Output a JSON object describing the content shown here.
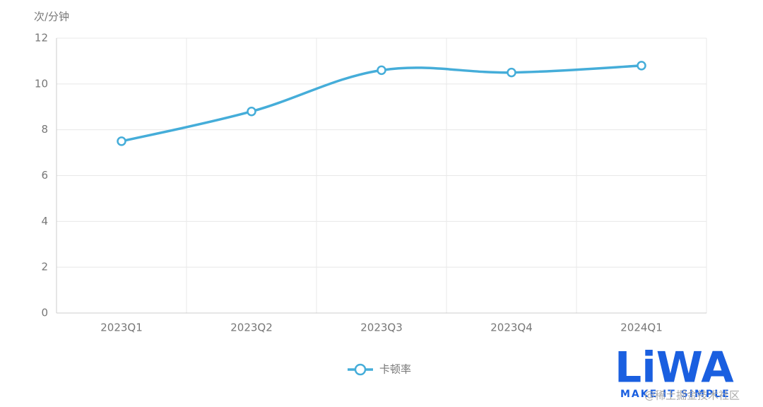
{
  "chart_data": {
    "type": "line",
    "y_unit": "次/分钟",
    "categories": [
      "2023Q1",
      "2023Q2",
      "2023Q3",
      "2023Q4",
      "2024Q1"
    ],
    "series": [
      {
        "name": "卡顿率",
        "color": "#45add9",
        "values": [
          7.5,
          8.8,
          10.6,
          10.5,
          10.8
        ]
      }
    ],
    "ylim": [
      0,
      12
    ],
    "yticks": [
      0,
      2,
      4,
      6,
      8,
      10,
      12
    ],
    "grid": true,
    "smooth": true,
    "legend": "bottom"
  },
  "watermark": {
    "logo": "LiWA",
    "tagline": "MAKE IT SIMPLE",
    "source": "@稀土掘金技术社区"
  }
}
